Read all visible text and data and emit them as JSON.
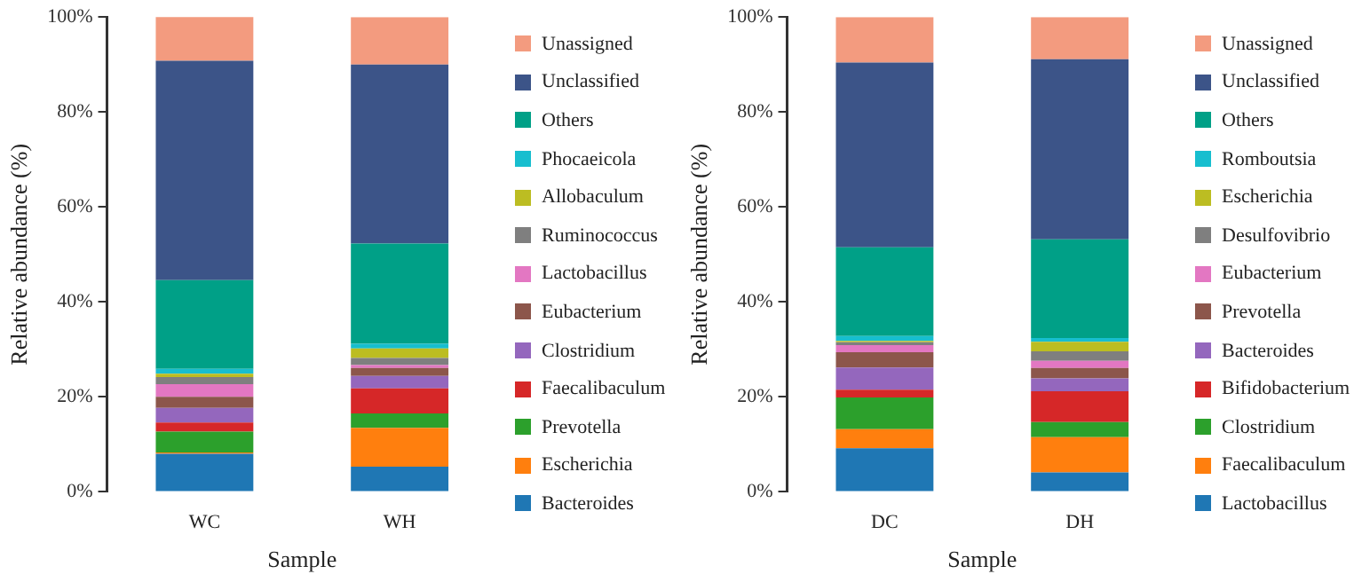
{
  "chart_data": [
    {
      "type": "bar",
      "stacked": true,
      "xlabel": "Sample",
      "ylabel": "Relative abundance (%)",
      "categories": [
        "WC",
        "WH"
      ],
      "ylim": [
        0,
        100
      ],
      "yticks": [
        {
          "value": 0,
          "label": "0%"
        },
        {
          "value": 20,
          "label": "20%"
        },
        {
          "value": 40,
          "label": "40%"
        },
        {
          "value": 60,
          "label": "60%"
        },
        {
          "value": 80,
          "label": "80%"
        },
        {
          "value": 100,
          "label": "100%"
        }
      ],
      "grid": false,
      "legend": "right",
      "series": [
        {
          "name": "Bacteroides",
          "color": "#1f77b4",
          "values": [
            8.0,
            5.3
          ]
        },
        {
          "name": "Escherichia",
          "color": "#ff7f0e",
          "values": [
            0.3,
            8.2
          ]
        },
        {
          "name": "Prevotella",
          "color": "#2ca02c",
          "values": [
            4.4,
            3.0
          ]
        },
        {
          "name": "Faecalibaculum",
          "color": "#d62728",
          "values": [
            1.9,
            5.3
          ]
        },
        {
          "name": "Clostridium",
          "color": "#9467bd",
          "values": [
            3.1,
            2.6
          ]
        },
        {
          "name": "Eubacterium",
          "color": "#8c564b",
          "values": [
            2.3,
            1.7
          ]
        },
        {
          "name": "Lactobacillus",
          "color": "#e377c2",
          "values": [
            2.7,
            0.6
          ]
        },
        {
          "name": "Ruminococcus",
          "color": "#7f7f7f",
          "values": [
            1.5,
            1.5
          ]
        },
        {
          "name": "Allobaculum",
          "color": "#bcbd22",
          "values": [
            0.7,
            2.0
          ]
        },
        {
          "name": "Phocaeicola",
          "color": "#17becf",
          "values": [
            1.0,
            1.0
          ]
        },
        {
          "name": "Others",
          "color": "#00a087",
          "values": [
            18.7,
            21.1
          ]
        },
        {
          "name": "Unclassified",
          "color": "#3c5488",
          "values": [
            46.2,
            37.7
          ]
        },
        {
          "name": "Unassigned",
          "color": "#f39b7f",
          "values": [
            9.3,
            10.0
          ]
        }
      ]
    },
    {
      "type": "bar",
      "stacked": true,
      "xlabel": "Sample",
      "ylabel": "Relative abundance (%)",
      "categories": [
        "DC",
        "DH"
      ],
      "ylim": [
        0,
        100
      ],
      "yticks": [
        {
          "value": 0,
          "label": "0%"
        },
        {
          "value": 20,
          "label": "20%"
        },
        {
          "value": 40,
          "label": "40%"
        },
        {
          "value": 60,
          "label": "60%"
        },
        {
          "value": 80,
          "label": "80%"
        },
        {
          "value": 100,
          "label": "100%"
        }
      ],
      "grid": false,
      "legend": "right",
      "series": [
        {
          "name": "Lactobacillus",
          "color": "#1f77b4",
          "values": [
            9.2,
            4.1
          ]
        },
        {
          "name": "Faecalibaculum",
          "color": "#ff7f0e",
          "values": [
            4.0,
            7.4
          ]
        },
        {
          "name": "Clostridium",
          "color": "#2ca02c",
          "values": [
            6.7,
            3.2
          ]
        },
        {
          "name": "Bifidobacterium",
          "color": "#d62728",
          "values": [
            1.6,
            6.5
          ]
        },
        {
          "name": "Bacteroides",
          "color": "#9467bd",
          "values": [
            4.7,
            2.7
          ]
        },
        {
          "name": "Prevotella",
          "color": "#8c564b",
          "values": [
            3.2,
            2.2
          ]
        },
        {
          "name": "Eubacterium",
          "color": "#e377c2",
          "values": [
            1.5,
            1.5
          ]
        },
        {
          "name": "Desulfovibrio",
          "color": "#7f7f7f",
          "values": [
            0.6,
            2.0
          ]
        },
        {
          "name": "Escherichia",
          "color": "#bcbd22",
          "values": [
            0.3,
            2.0
          ]
        },
        {
          "name": "Romboutsia",
          "color": "#17becf",
          "values": [
            1.0,
            0.8
          ]
        },
        {
          "name": "Others",
          "color": "#00a087",
          "values": [
            18.7,
            20.8
          ]
        },
        {
          "name": "Unclassified",
          "color": "#3c5488",
          "values": [
            38.9,
            37.9
          ]
        },
        {
          "name": "Unassigned",
          "color": "#f39b7f",
          "values": [
            9.6,
            8.9
          ]
        }
      ]
    }
  ]
}
